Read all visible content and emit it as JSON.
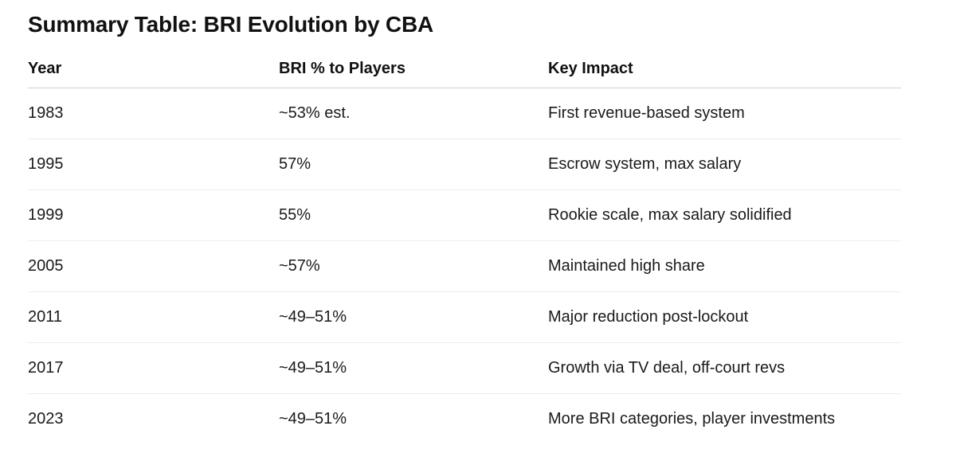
{
  "title": "Summary Table: BRI Evolution by CBA",
  "table": {
    "headers": [
      "Year",
      "BRI % to Players",
      "Key Impact"
    ],
    "rows": [
      [
        "1983",
        "~53% est.",
        "First revenue-based system"
      ],
      [
        "1995",
        "57%",
        "Escrow system, max salary"
      ],
      [
        "1999",
        "55%",
        "Rookie scale, max salary solidified"
      ],
      [
        "2005",
        "~57%",
        "Maintained high share"
      ],
      [
        "2011",
        "~49–51%",
        "Major reduction post-lockout"
      ],
      [
        "2017",
        "~49–51%",
        "Growth via TV deal, off-court revs"
      ],
      [
        "2023",
        "~49–51%",
        "More BRI categories, player investments"
      ]
    ]
  }
}
